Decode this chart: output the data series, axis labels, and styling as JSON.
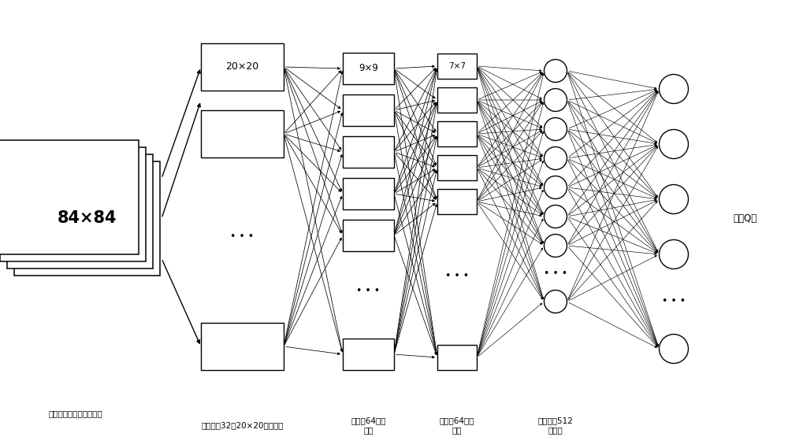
{
  "bg_color": "#ffffff",
  "input_label": "84×84",
  "input_sublabel": "输入传感系统处理后图像",
  "layer1_label": "20×20",
  "layer1_sublabel": "第一层有32个20×20的卷积核",
  "layer2_label": "9×9",
  "layer2_sublabel": "第二层64个卷\n积核",
  "layer3_label": "7×7",
  "layer3_sublabel": "第三层64个卷\n积核",
  "fc_sublabel": "全连接层512\n个结点",
  "output_label": "输出Q值"
}
